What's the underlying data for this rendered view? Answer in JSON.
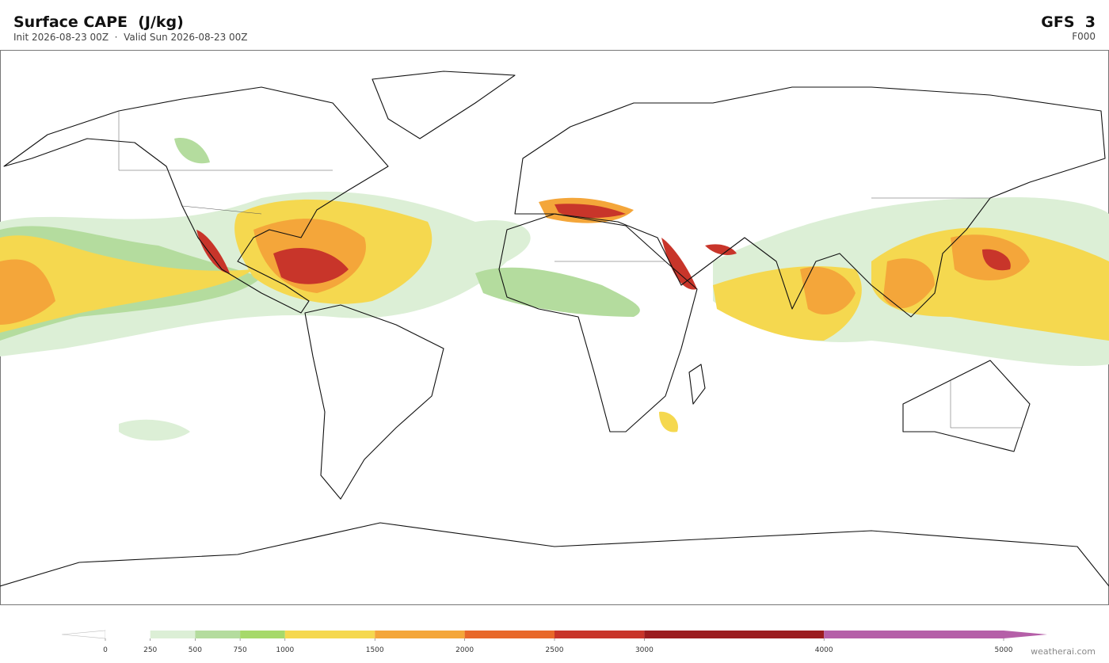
{
  "header": {
    "title": "Surface CAPE  (J/kg)",
    "subtitle": "Init 2026-08-23 00Z  ·  Valid Sun 2026-08-23 00Z",
    "model": "GFS  3",
    "forecast_hour": "F000"
  },
  "colorbar": {
    "ticks": [
      0,
      250,
      500,
      750,
      1000,
      1500,
      2000,
      2500,
      3000,
      4000,
      5000
    ],
    "colors": [
      "#ffffff",
      "#dcefd6",
      "#b4dc9e",
      "#a6d96a",
      "#f5d84f",
      "#f4a63a",
      "#e8682a",
      "#c8352a",
      "#9b1c1f",
      "#b55fa8"
    ]
  },
  "footer": {
    "credit": "weatherai.com"
  }
}
